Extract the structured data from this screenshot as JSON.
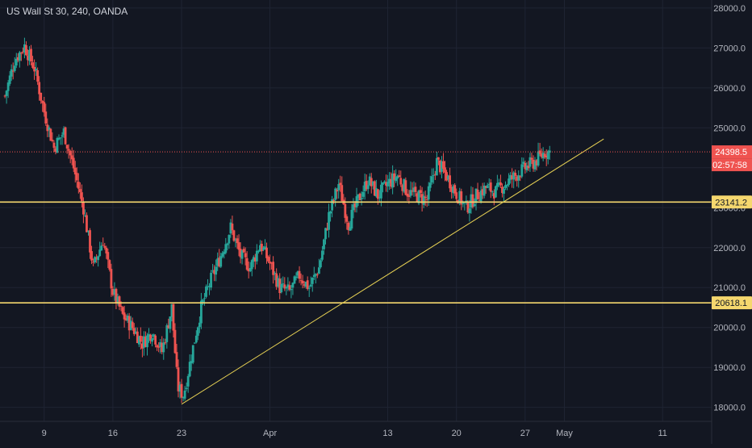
{
  "symbol_title": "US Wall St 30, 240, OANDA",
  "colors": {
    "background": "#131722",
    "grid": "#1f2433",
    "up": "#26a69a",
    "down": "#ef5350",
    "horizontal_line": "#f5d76e",
    "trendline": "#e8d254",
    "current_price_line": "#ef5350",
    "axis_text": "#b2b5be"
  },
  "chart_data": {
    "type": "candlestick",
    "title": "US Wall St 30, 240, OANDA",
    "y_range": [
      17650,
      28200
    ],
    "y_ticks": [
      "28000.0",
      "27000.0",
      "26000.0",
      "25000.0",
      "24000.0",
      "23000.0",
      "22000.0",
      "21000.0",
      "20000.0",
      "19000.0",
      "18000.0"
    ],
    "y_tick_values": [
      28000,
      27000,
      26000,
      25000,
      24000,
      23000,
      22000,
      21000,
      20000,
      19000,
      18000
    ],
    "x_ticks": [
      {
        "label": "9",
        "day": 9
      },
      {
        "label": "16",
        "day": 16
      },
      {
        "label": "23",
        "day": 23
      },
      {
        "label": "Apr",
        "day": 32
      },
      {
        "label": "13",
        "day": 44
      },
      {
        "label": "20",
        "day": 51
      },
      {
        "label": "27",
        "day": 58
      },
      {
        "label": "May",
        "day": 62
      },
      {
        "label": "11",
        "day": 72
      }
    ],
    "x_day_range": [
      4.5,
      77.0
    ],
    "trend_anchors": [
      {
        "day": 5,
        "price": 25800
      },
      {
        "day": 6,
        "price": 26700
      },
      {
        "day": 7,
        "price": 27050
      },
      {
        "day": 8,
        "price": 26500
      },
      {
        "day": 9,
        "price": 25400
      },
      {
        "day": 10,
        "price": 24500
      },
      {
        "day": 11,
        "price": 24900
      },
      {
        "day": 12,
        "price": 24000
      },
      {
        "day": 13,
        "price": 23000
      },
      {
        "day": 14,
        "price": 21500
      },
      {
        "day": 15,
        "price": 22200
      },
      {
        "day": 16,
        "price": 20900
      },
      {
        "day": 17,
        "price": 20300
      },
      {
        "day": 18,
        "price": 20000
      },
      {
        "day": 19,
        "price": 19600
      },
      {
        "day": 20,
        "price": 19900
      },
      {
        "day": 21,
        "price": 19400
      },
      {
        "day": 22,
        "price": 20500
      },
      {
        "day": 22.6,
        "price": 18500
      },
      {
        "day": 23.2,
        "price": 18300
      },
      {
        "day": 24,
        "price": 19300
      },
      {
        "day": 25,
        "price": 20500
      },
      {
        "day": 26,
        "price": 21200
      },
      {
        "day": 27,
        "price": 21800
      },
      {
        "day": 28,
        "price": 22500
      },
      {
        "day": 29,
        "price": 21800
      },
      {
        "day": 30,
        "price": 21500
      },
      {
        "day": 31,
        "price": 22100
      },
      {
        "day": 32,
        "price": 21600
      },
      {
        "day": 33,
        "price": 21000
      },
      {
        "day": 34,
        "price": 20900
      },
      {
        "day": 35,
        "price": 21300
      },
      {
        "day": 36,
        "price": 21000
      },
      {
        "day": 37,
        "price": 21500
      },
      {
        "day": 38,
        "price": 22800
      },
      {
        "day": 39,
        "price": 23600
      },
      {
        "day": 40,
        "price": 22600
      },
      {
        "day": 41,
        "price": 23200
      },
      {
        "day": 42,
        "price": 23700
      },
      {
        "day": 43,
        "price": 23300
      },
      {
        "day": 44,
        "price": 23600
      },
      {
        "day": 45,
        "price": 23800
      },
      {
        "day": 46,
        "price": 23400
      },
      {
        "day": 47,
        "price": 23300
      },
      {
        "day": 48,
        "price": 23200
      },
      {
        "day": 49,
        "price": 24150
      },
      {
        "day": 50,
        "price": 23800
      },
      {
        "day": 51,
        "price": 23350
      },
      {
        "day": 52,
        "price": 23000
      },
      {
        "day": 53,
        "price": 23300
      },
      {
        "day": 54,
        "price": 23500
      },
      {
        "day": 55,
        "price": 23400
      },
      {
        "day": 56,
        "price": 23600
      },
      {
        "day": 57,
        "price": 23800
      },
      {
        "day": 58,
        "price": 24000
      },
      {
        "day": 59,
        "price": 24150
      },
      {
        "day": 60,
        "price": 24398.5
      }
    ],
    "horizontal_levels": [
      {
        "price": 23141.2,
        "label": "23141.2"
      },
      {
        "price": 20618.1,
        "label": "20618.1"
      }
    ],
    "trendline": {
      "start": {
        "day": 23,
        "price": 18080
      },
      "end": {
        "day": 66,
        "price": 24720
      }
    },
    "current_price": {
      "price": 24398.5,
      "label": "24398.5",
      "countdown": "02:57:58"
    }
  }
}
